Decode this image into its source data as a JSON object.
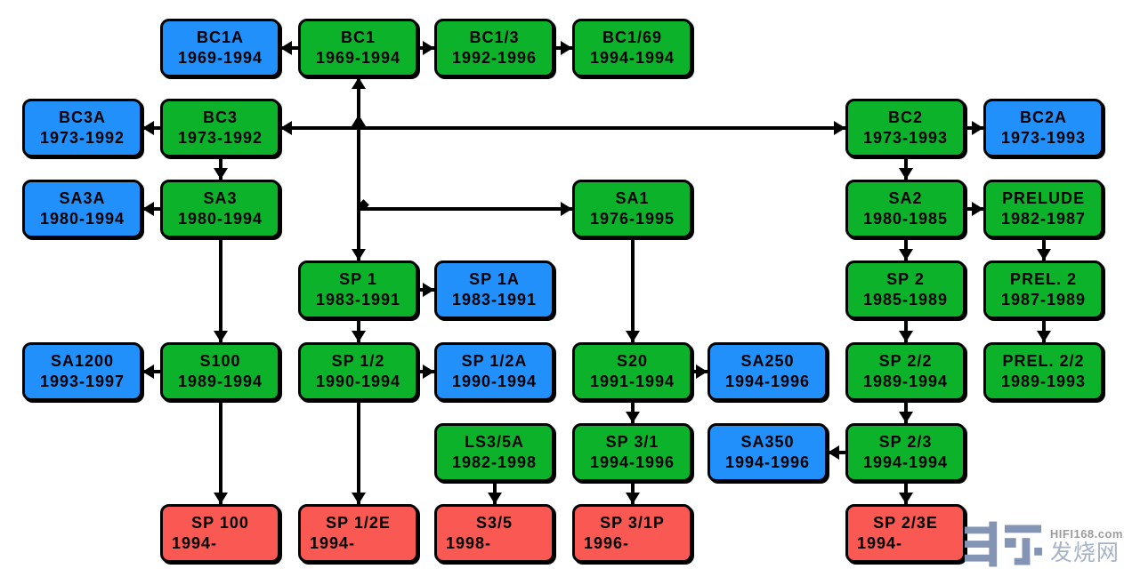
{
  "diagram_type": "model-family-tree",
  "colors": {
    "green": "#0cb32a",
    "blue": "#2190fb",
    "red": "#f95853",
    "line": "#000000",
    "background": "#ffffff",
    "watermark_logo": "#8494b4",
    "watermark_text": "#9c9c9c",
    "watermark_cn": "#a6b2c6"
  },
  "nodes": [
    {
      "id": "bc1a",
      "name": "BC1A",
      "years": "1969-1994",
      "color": "blue",
      "col": 1,
      "row": 1
    },
    {
      "id": "bc1",
      "name": "BC1",
      "years": "1969-1994",
      "color": "green",
      "col": 2,
      "row": 1
    },
    {
      "id": "bc13",
      "name": "BC1/3",
      "years": "1992-1996",
      "color": "green",
      "col": 3,
      "row": 1
    },
    {
      "id": "bc169",
      "name": "BC1/69",
      "years": "1994-1994",
      "color": "green",
      "col": 4,
      "row": 1
    },
    {
      "id": "bc3a",
      "name": "BC3A",
      "years": "1973-1992",
      "color": "blue",
      "col": 0,
      "row": 2
    },
    {
      "id": "bc3",
      "name": "BC3",
      "years": "1973-1992",
      "color": "green",
      "col": 1,
      "row": 2
    },
    {
      "id": "bc2",
      "name": "BC2",
      "years": "1973-1993",
      "color": "green",
      "col": 6,
      "row": 2
    },
    {
      "id": "bc2a",
      "name": "BC2A",
      "years": "1973-1993",
      "color": "blue",
      "col": 7,
      "row": 2
    },
    {
      "id": "sa3a",
      "name": "SA3A",
      "years": "1980-1994",
      "color": "blue",
      "col": 0,
      "row": 3
    },
    {
      "id": "sa3",
      "name": "SA3",
      "years": "1980-1994",
      "color": "green",
      "col": 1,
      "row": 3
    },
    {
      "id": "sa1",
      "name": "SA1",
      "years": "1976-1995",
      "color": "green",
      "col": 4,
      "row": 3
    },
    {
      "id": "sa2",
      "name": "SA2",
      "years": "1980-1985",
      "color": "green",
      "col": 6,
      "row": 3
    },
    {
      "id": "prelude",
      "name": "PRELUDE",
      "years": "1982-1987",
      "color": "green",
      "col": 7,
      "row": 3
    },
    {
      "id": "sp1",
      "name": "SP 1",
      "years": "1983-1991",
      "color": "green",
      "col": 2,
      "row": 4
    },
    {
      "id": "sp1a",
      "name": "SP 1A",
      "years": "1983-1991",
      "color": "blue",
      "col": 3,
      "row": 4
    },
    {
      "id": "sp2",
      "name": "SP 2",
      "years": "1985-1989",
      "color": "green",
      "col": 6,
      "row": 4
    },
    {
      "id": "prel2",
      "name": "PREL. 2",
      "years": "1987-1989",
      "color": "green",
      "col": 7,
      "row": 4
    },
    {
      "id": "sa1200",
      "name": "SA1200",
      "years": "1993-1997",
      "color": "blue",
      "col": 0,
      "row": 5
    },
    {
      "id": "s100",
      "name": "S100",
      "years": "1989-1994",
      "color": "green",
      "col": 1,
      "row": 5
    },
    {
      "id": "sp12",
      "name": "SP 1/2",
      "years": "1990-1994",
      "color": "green",
      "col": 2,
      "row": 5
    },
    {
      "id": "sp12a",
      "name": "SP 1/2A",
      "years": "1990-1994",
      "color": "blue",
      "col": 3,
      "row": 5
    },
    {
      "id": "s20",
      "name": "S20",
      "years": "1991-1994",
      "color": "green",
      "col": 4,
      "row": 5
    },
    {
      "id": "sa250",
      "name": "SA250",
      "years": "1994-1996",
      "color": "blue",
      "col": 5,
      "row": 5
    },
    {
      "id": "sp22",
      "name": "SP 2/2",
      "years": "1989-1994",
      "color": "green",
      "col": 6,
      "row": 5
    },
    {
      "id": "prel22",
      "name": "PREL. 2/2",
      "years": "1989-1993",
      "color": "green",
      "col": 7,
      "row": 5
    },
    {
      "id": "ls35a",
      "name": "LS3/5A",
      "years": "1982-1998",
      "color": "green",
      "col": 3,
      "row": 6
    },
    {
      "id": "sp31",
      "name": "SP 3/1",
      "years": "1994-1996",
      "color": "green",
      "col": 4,
      "row": 6
    },
    {
      "id": "sa350",
      "name": "SA350",
      "years": "1994-1996",
      "color": "blue",
      "col": 5,
      "row": 6
    },
    {
      "id": "sp23",
      "name": "SP 2/3",
      "years": "1994-1994",
      "color": "green",
      "col": 6,
      "row": 6
    },
    {
      "id": "sp100",
      "name": "SP 100",
      "years": "1994-",
      "color": "red",
      "col": 1,
      "row": 7
    },
    {
      "id": "sp12e",
      "name": "SP 1/2E",
      "years": "1994-",
      "color": "red",
      "col": 2,
      "row": 7
    },
    {
      "id": "s35",
      "name": "S3/5",
      "years": "1998-",
      "color": "red",
      "col": 3,
      "row": 7
    },
    {
      "id": "sp31p",
      "name": "SP 3/1P",
      "years": "1996-",
      "color": "red",
      "col": 4,
      "row": 7
    },
    {
      "id": "sp23e",
      "name": "SP 2/3E",
      "years": "1994-",
      "color": "red",
      "col": 6,
      "row": 7
    }
  ],
  "edges_horizontal": [
    {
      "from": "bc1",
      "to": "bc1a",
      "direction": "left"
    },
    {
      "from": "bc1",
      "to": "bc13",
      "direction": "right"
    },
    {
      "from": "bc13",
      "to": "bc169",
      "direction": "right"
    },
    {
      "from": "bc3",
      "to": "bc3a",
      "direction": "left"
    },
    {
      "from": "bc2",
      "to": "bc2a",
      "direction": "right"
    },
    {
      "from": "sa3",
      "to": "sa3a",
      "direction": "left"
    },
    {
      "from": "sa2",
      "to": "prelude",
      "direction": "right"
    },
    {
      "from": "sp1",
      "to": "sp1a",
      "direction": "right"
    },
    {
      "from": "s100",
      "to": "sa1200",
      "direction": "left"
    },
    {
      "from": "sp12",
      "to": "sp12a",
      "direction": "right"
    },
    {
      "from": "s20",
      "to": "sa250",
      "direction": "right"
    },
    {
      "from": "sp23",
      "to": "sa350",
      "direction": "left"
    }
  ],
  "edges_vertical": [
    {
      "from": "bc3",
      "to": "sa3"
    },
    {
      "from": "sa3",
      "to": "s100"
    },
    {
      "from": "s100",
      "to": "sp100"
    },
    {
      "from": "sp1",
      "to": "sp12"
    },
    {
      "from": "sp12",
      "to": "sp12e"
    },
    {
      "from": "sa1",
      "to": "s20"
    },
    {
      "from": "s20",
      "to": "sp31"
    },
    {
      "from": "sp31",
      "to": "sp31p"
    },
    {
      "from": "ls35a",
      "to": "s35"
    },
    {
      "from": "bc2",
      "to": "sa2"
    },
    {
      "from": "sa2",
      "to": "sp2"
    },
    {
      "from": "sp2",
      "to": "sp22"
    },
    {
      "from": "sp22",
      "to": "sp23"
    },
    {
      "from": "sp23",
      "to": "sp23e"
    },
    {
      "from": "prelude",
      "to": "prel2"
    },
    {
      "from": "prel2",
      "to": "prel22"
    }
  ],
  "trunk": {
    "from": "bc1",
    "down_to": "sp1",
    "cross_left_to": "bc3",
    "cross_right_to": "bc2",
    "branch_right_to": "sa1"
  },
  "watermark": {
    "site": "HIFI168.com",
    "site_cn": "发烧网"
  }
}
